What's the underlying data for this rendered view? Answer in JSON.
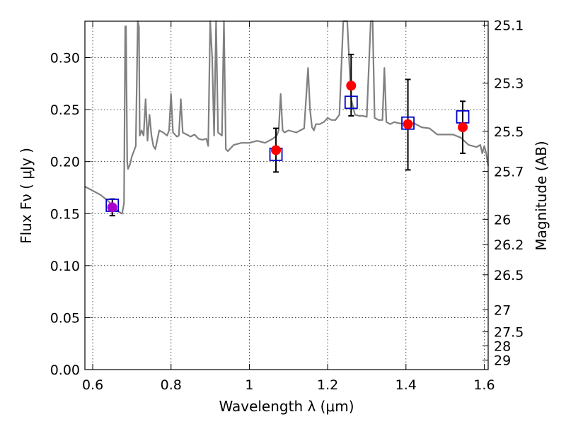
{
  "chart_data": {
    "type": "scatter",
    "xlabel": "Wavelength  λ (μm)",
    "ylabel": "Flux  Fν  ( μJy )",
    "y2label": "Magnitude (AB)",
    "xlim": [
      0.58,
      1.61
    ],
    "ylim": [
      0.0,
      0.335
    ],
    "grid": true,
    "x_ticks": [
      0.6,
      0.8,
      1.0,
      1.2,
      1.4,
      1.6
    ],
    "x_tick_labels": [
      "0.6",
      "0.8",
      "1",
      "1.2",
      "1.4",
      "1.6"
    ],
    "y_ticks": [
      0.0,
      0.05,
      0.1,
      0.15,
      0.2,
      0.25,
      0.3
    ],
    "y_tick_labels": [
      "0.00",
      "0.05",
      "0.10",
      "0.15",
      "0.20",
      "0.25",
      "0.30"
    ],
    "magnitude_ticks": [
      {
        "label": "25.1",
        "flux": 0.3311
      },
      {
        "label": "25.3",
        "flux": 0.2754
      },
      {
        "label": "25.5",
        "flux": 0.2291
      },
      {
        "label": "25.7",
        "flux": 0.1905
      },
      {
        "label": "26",
        "flux": 0.1445
      },
      {
        "label": "26.2",
        "flux": 0.1202
      },
      {
        "label": "26.5",
        "flux": 0.0912
      },
      {
        "label": "27",
        "flux": 0.0575
      },
      {
        "label": "27.5",
        "flux": 0.0363
      },
      {
        "label": "28",
        "flux": 0.0229
      },
      {
        "label": "29",
        "flux": 0.0091
      }
    ],
    "model_spectrum": {
      "color": "#808080",
      "x": [
        0.58,
        0.6,
        0.62,
        0.64,
        0.655,
        0.665,
        0.675,
        0.68,
        0.683,
        0.685,
        0.688,
        0.69,
        0.695,
        0.7,
        0.705,
        0.71,
        0.715,
        0.718,
        0.72,
        0.725,
        0.73,
        0.735,
        0.74,
        0.745,
        0.75,
        0.755,
        0.76,
        0.77,
        0.78,
        0.79,
        0.795,
        0.8,
        0.805,
        0.81,
        0.815,
        0.82,
        0.825,
        0.83,
        0.84,
        0.85,
        0.86,
        0.87,
        0.88,
        0.89,
        0.895,
        0.9,
        0.905,
        0.91,
        0.915,
        0.92,
        0.93,
        0.935,
        0.94,
        0.945,
        0.95,
        0.96,
        0.98,
        1.0,
        1.02,
        1.04,
        1.06,
        1.07,
        1.075,
        1.08,
        1.085,
        1.09,
        1.1,
        1.12,
        1.14,
        1.15,
        1.155,
        1.16,
        1.165,
        1.17,
        1.18,
        1.19,
        1.2,
        1.21,
        1.22,
        1.23,
        1.24,
        1.25,
        1.26,
        1.27,
        1.28,
        1.29,
        1.3,
        1.31,
        1.315,
        1.32,
        1.33,
        1.34,
        1.345,
        1.35,
        1.36,
        1.37,
        1.38,
        1.4,
        1.42,
        1.44,
        1.46,
        1.48,
        1.5,
        1.52,
        1.54,
        1.56,
        1.58,
        1.59,
        1.595,
        1.6,
        1.605,
        1.61
      ],
      "y": [
        0.176,
        0.172,
        0.168,
        0.162,
        0.156,
        0.152,
        0.15,
        0.16,
        0.33,
        0.33,
        0.2,
        0.193,
        0.197,
        0.205,
        0.21,
        0.215,
        0.335,
        0.33,
        0.225,
        0.23,
        0.225,
        0.26,
        0.22,
        0.245,
        0.225,
        0.215,
        0.212,
        0.23,
        0.228,
        0.225,
        0.23,
        0.265,
        0.228,
        0.226,
        0.224,
        0.225,
        0.26,
        0.228,
        0.226,
        0.224,
        0.226,
        0.222,
        0.221,
        0.222,
        0.215,
        0.335,
        0.3,
        0.225,
        0.335,
        0.228,
        0.225,
        0.335,
        0.212,
        0.21,
        0.212,
        0.216,
        0.218,
        0.218,
        0.22,
        0.218,
        0.222,
        0.225,
        0.23,
        0.265,
        0.23,
        0.228,
        0.23,
        0.228,
        0.232,
        0.29,
        0.25,
        0.233,
        0.23,
        0.236,
        0.236,
        0.238,
        0.242,
        0.24,
        0.24,
        0.245,
        0.335,
        0.335,
        0.26,
        0.245,
        0.244,
        0.244,
        0.243,
        0.335,
        0.335,
        0.242,
        0.24,
        0.24,
        0.29,
        0.238,
        0.236,
        0.238,
        0.237,
        0.236,
        0.237,
        0.233,
        0.232,
        0.226,
        0.226,
        0.226,
        0.223,
        0.216,
        0.214,
        0.216,
        0.208,
        0.215,
        0.208,
        0.196
      ]
    },
    "observed": {
      "color": "#ff0000",
      "points": [
        {
          "x": 0.65,
          "y": 0.156,
          "yerr_low": 0.148,
          "yerr_high": 0.164
        },
        {
          "x": 1.068,
          "y": 0.211,
          "yerr_low": 0.19,
          "yerr_high": 0.232
        },
        {
          "x": 1.26,
          "y": 0.273,
          "yerr_low": 0.244,
          "yerr_high": 0.303
        },
        {
          "x": 1.405,
          "y": 0.236,
          "yerr_low": 0.192,
          "yerr_high": 0.279
        },
        {
          "x": 1.545,
          "y": 0.233,
          "yerr_low": 0.208,
          "yerr_high": 0.258
        }
      ]
    },
    "model_photometry": {
      "color": "#0000cc",
      "points": [
        {
          "x": 0.65,
          "y": 0.158
        },
        {
          "x": 1.068,
          "y": 0.207
        },
        {
          "x": 1.26,
          "y": 0.257
        },
        {
          "x": 1.405,
          "y": 0.237
        },
        {
          "x": 1.545,
          "y": 0.243
        }
      ]
    }
  }
}
